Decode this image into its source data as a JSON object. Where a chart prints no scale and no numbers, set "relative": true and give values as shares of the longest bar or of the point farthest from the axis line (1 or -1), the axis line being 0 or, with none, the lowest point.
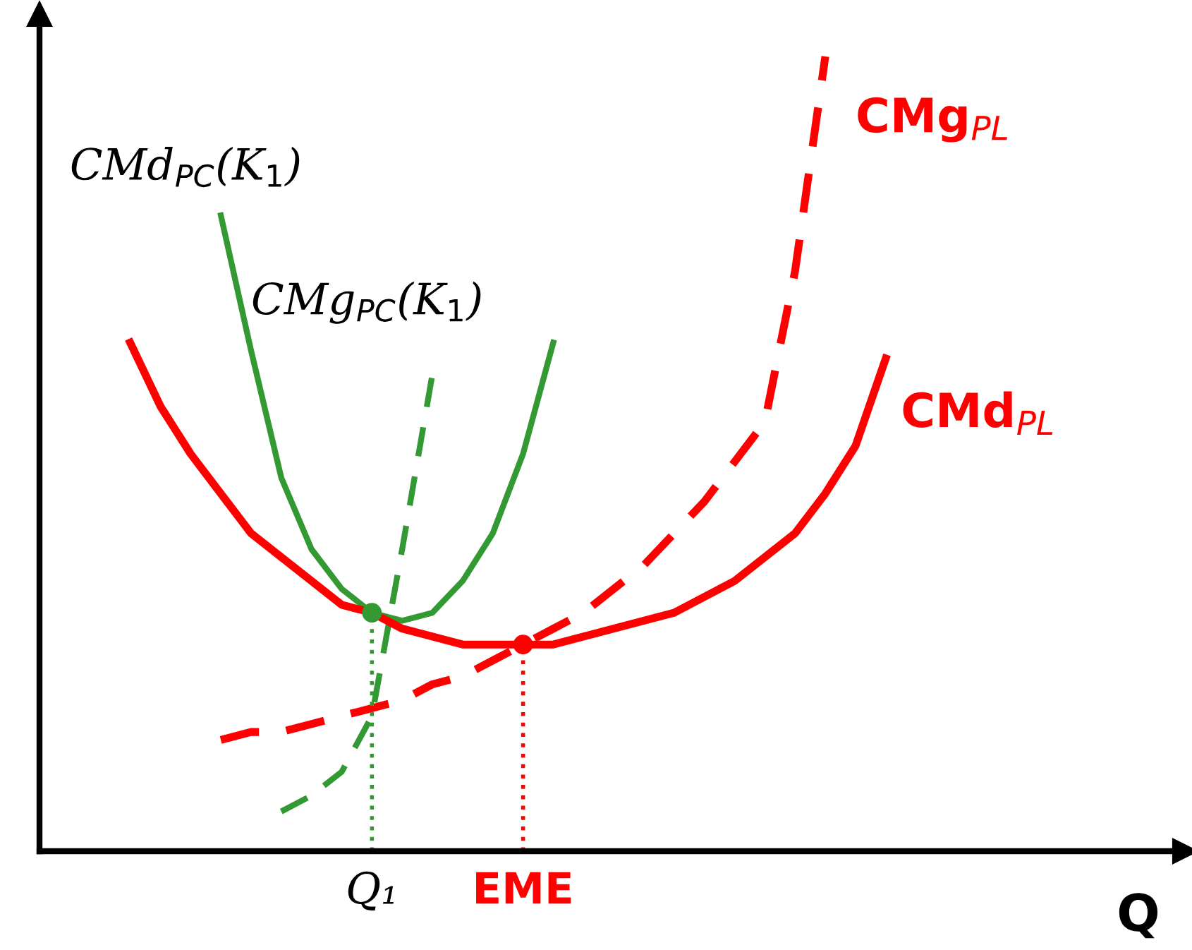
{
  "chart_data": {
    "type": "line",
    "relative": true,
    "xlabel": "Q",
    "categories": [
      null,
      null,
      null,
      null,
      null,
      null,
      null,
      null,
      null,
      null,
      null,
      "Q₁",
      null,
      null,
      null,
      null,
      "EME",
      null,
      null,
      null,
      null,
      null,
      null,
      null,
      null,
      null,
      null,
      null,
      null,
      null,
      null,
      null,
      null,
      null,
      null,
      null,
      null,
      null
    ],
    "series": [
      {
        "name": "CMd$_{PC}$(K$_{1}$)",
        "line_style": "solid",
        "color": "#339933",
        "values": [
          null,
          null,
          null,
          null,
          null,
          null,
          0.8,
          0.63,
          0.47,
          0.38,
          0.33,
          0.3,
          0.29,
          0.3,
          0.34,
          0.4,
          0.5,
          0.64,
          null,
          null,
          null,
          null,
          null,
          null,
          null,
          null,
          null,
          null,
          null,
          null,
          null,
          null,
          null,
          null,
          null,
          null,
          null,
          null
        ]
      },
      {
        "name": "CMg$_{PC}$(K$_{1}$)",
        "line_style": "dashed",
        "color": "#339933",
        "values": [
          null,
          null,
          null,
          null,
          null,
          null,
          null,
          null,
          0.05,
          0.07,
          0.1,
          0.17,
          0.38,
          0.6,
          null,
          null,
          null,
          null,
          null,
          null,
          null,
          null,
          null,
          null,
          null,
          null,
          null,
          null,
          null,
          null,
          null,
          null,
          null,
          null,
          null,
          null,
          null,
          null
        ]
      },
      {
        "name": "CMd$_{PL}$",
        "line_style": "solid",
        "color": "#ff0000",
        "values": [
          null,
          null,
          null,
          0.64,
          0.56,
          0.5,
          0.45,
          0.4,
          0.37,
          0.34,
          0.31,
          0.3,
          0.28,
          0.27,
          0.26,
          0.26,
          0.26,
          0.26,
          0.27,
          0.28,
          0.29,
          0.3,
          0.32,
          0.34,
          0.37,
          0.4,
          0.45,
          0.51,
          0.62,
          null,
          null,
          null,
          null,
          null,
          null,
          null,
          null,
          null
        ]
      },
      {
        "name": "CMg$_{PL}$",
        "line_style": "dashed",
        "color": "#ff0000",
        "values": [
          null,
          null,
          null,
          null,
          null,
          null,
          0.14,
          0.15,
          0.15,
          0.16,
          0.17,
          0.18,
          0.19,
          0.21,
          0.22,
          0.24,
          0.26,
          0.28,
          0.3,
          0.33,
          0.36,
          0.4,
          0.44,
          0.49,
          0.54,
          0.73,
          1.0,
          null,
          null,
          null,
          null,
          null,
          null,
          null,
          null,
          null,
          null,
          null
        ]
      },
      {
        "type": "lollipop",
        "line_style": "dotted",
        "color": "#339933",
        "values": [
          null,
          null,
          null,
          null,
          null,
          null,
          null,
          null,
          null,
          null,
          null,
          0.3,
          null,
          null,
          null,
          null,
          null,
          null,
          null,
          null,
          null,
          null,
          null,
          null,
          null,
          null,
          null,
          null,
          null,
          null,
          null,
          null,
          null,
          null,
          null,
          null,
          null,
          null
        ]
      },
      {
        "type": "lollipop",
        "line_style": "dotted",
        "color": "#ff0000",
        "values": [
          null,
          null,
          null,
          null,
          null,
          null,
          null,
          null,
          null,
          null,
          null,
          null,
          null,
          null,
          null,
          null,
          0.26,
          null,
          null,
          null,
          null,
          null,
          null,
          null,
          null,
          null,
          null,
          null,
          null,
          null,
          null,
          null,
          null,
          null,
          null,
          null,
          null,
          null
        ]
      }
    ]
  }
}
